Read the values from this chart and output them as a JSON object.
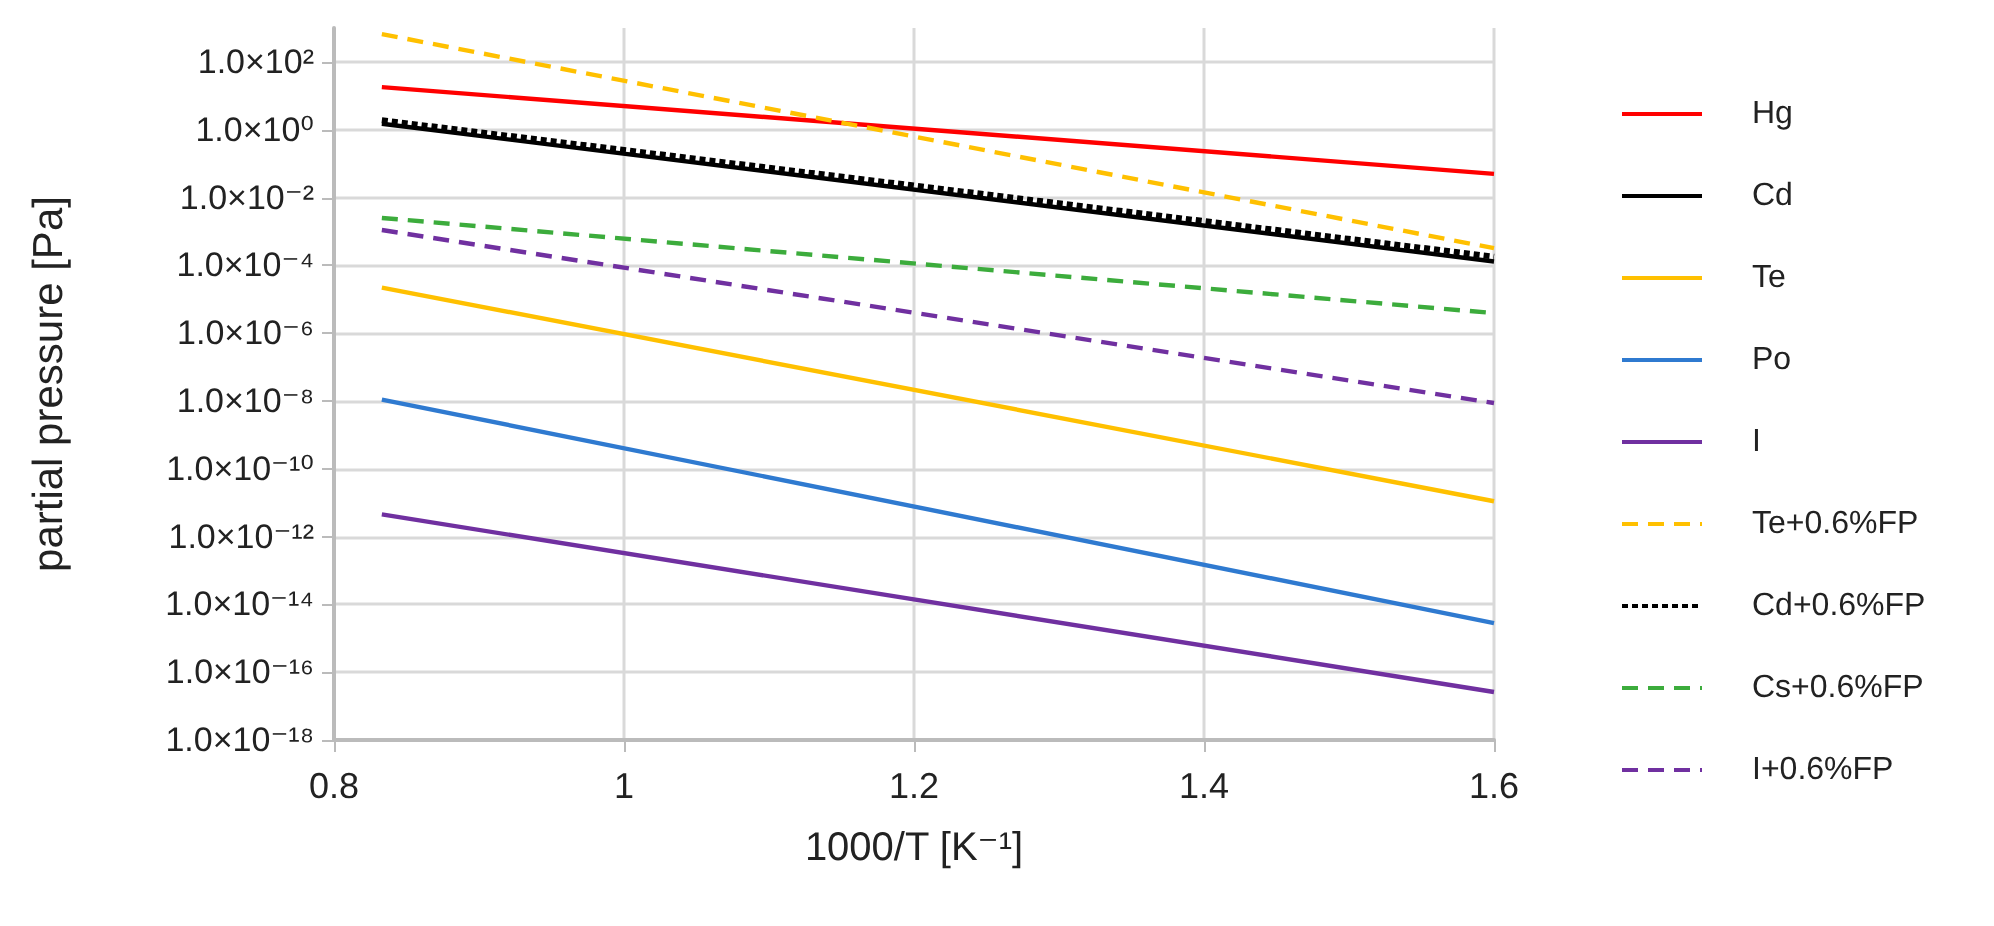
{
  "chart_data": {
    "type": "line",
    "xlabel": "1000/T [K⁻¹]",
    "ylabel": "partial pressure [Pa]",
    "xlim": [
      0.8,
      1.6
    ],
    "xticks": [
      0.8,
      1,
      1.2,
      1.4,
      1.6
    ],
    "ylim": [
      1e-18,
      1000
    ],
    "log": "y",
    "yticks": [
      {
        "value": 1e-18,
        "label": "1.0×10⁻¹⁸"
      },
      {
        "value": 1e-16,
        "label": "1.0×10⁻¹⁶"
      },
      {
        "value": 1e-14,
        "label": "1.0×10⁻¹⁴"
      },
      {
        "value": 1e-12,
        "label": "1.0×10⁻¹²"
      },
      {
        "value": 1e-10,
        "label": "1.0×10⁻¹⁰"
      },
      {
        "value": 1e-08,
        "label": "1.0×10⁻⁸"
      },
      {
        "value": 1e-06,
        "label": "1.0×10⁻⁶"
      },
      {
        "value": 0.0001,
        "label": "1.0×10⁻⁴"
      },
      {
        "value": 0.01,
        "label": "1.0×10⁻²"
      },
      {
        "value": 1,
        "label": "1.0×10⁰"
      },
      {
        "value": 100,
        "label": "1.0×10²"
      }
    ],
    "grid": true,
    "legend": "right",
    "marker": "none",
    "x": [
      0.833,
      1.6
    ],
    "series": [
      {
        "name": "Hg",
        "color": "#ff0000",
        "line_style": "solid",
        "values": [
          18,
          0.05
        ]
      },
      {
        "name": "Cd",
        "color": "#000000",
        "line_style": "solid",
        "values": [
          1.5,
          0.00013
        ]
      },
      {
        "name": "Te",
        "color": "#ffc000",
        "line_style": "solid",
        "values": [
          2.2e-05,
          1.1e-11
        ]
      },
      {
        "name": "Po",
        "color": "#2f7ad0",
        "line_style": "solid",
        "values": [
          1.1e-08,
          2.8e-15
        ]
      },
      {
        "name": "I",
        "color": "#7030a0",
        "line_style": "solid",
        "values": [
          4.5e-12,
          2.6e-17
        ]
      },
      {
        "name": "Te+0.6%FP",
        "color": "#ffc000",
        "line_style": "dashed",
        "values": [
          660,
          0.00032
        ]
      },
      {
        "name": "Cd+0.6%FP",
        "color": "#000000",
        "line_style": "dotted",
        "values": [
          1.9,
          0.00018
        ]
      },
      {
        "name": "Cs+0.6%FP",
        "color": "#3cac3c",
        "line_style": "dashed",
        "values": [
          0.0025,
          3.9e-06
        ]
      },
      {
        "name": "I+0.6%FP",
        "color": "#7030a0",
        "line_style": "dashed",
        "values": [
          0.0011,
          8.7e-09
        ]
      }
    ]
  }
}
